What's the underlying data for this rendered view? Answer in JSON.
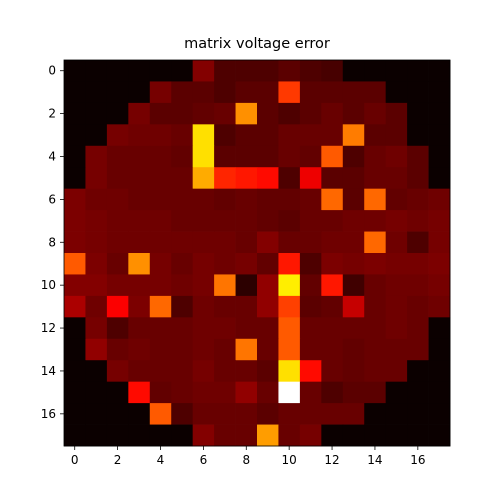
{
  "chart_data": {
    "type": "heatmap",
    "title": "matrix voltage error",
    "xlabel": "",
    "ylabel": "",
    "colormap": "hot",
    "vmin": 0,
    "vmax": 1,
    "x_ticks": [
      0,
      2,
      4,
      6,
      8,
      10,
      12,
      14,
      16
    ],
    "y_ticks": [
      0,
      2,
      4,
      6,
      8,
      10,
      12,
      14,
      16
    ],
    "xlim": [
      -0.5,
      17.5
    ],
    "ylim": [
      17.5,
      -0.5
    ],
    "grid": false,
    "values": [
      [
        0,
        0,
        0,
        0,
        0,
        0,
        0.18,
        0.1,
        0.1,
        0.1,
        0.12,
        0.1,
        0.09,
        0,
        0,
        0,
        0,
        0
      ],
      [
        0,
        0,
        0,
        0,
        0.16,
        0.12,
        0.12,
        0.1,
        0.12,
        0.12,
        0.45,
        0.12,
        0.12,
        0.12,
        0.12,
        0,
        0,
        0
      ],
      [
        0,
        0,
        0,
        0.16,
        0.12,
        0.12,
        0.13,
        0.14,
        0.58,
        0.12,
        0.1,
        0.12,
        0.14,
        0.12,
        0.14,
        0.12,
        0,
        0
      ],
      [
        0,
        0,
        0.16,
        0.15,
        0.15,
        0.14,
        0.7,
        0.1,
        0.12,
        0.12,
        0.14,
        0.14,
        0.14,
        0.55,
        0.12,
        0.12,
        0,
        0
      ],
      [
        0,
        0.16,
        0.14,
        0.14,
        0.14,
        0.13,
        0.7,
        0.12,
        0.12,
        0.12,
        0.14,
        0.13,
        0.5,
        0.1,
        0.14,
        0.15,
        0.12,
        0
      ],
      [
        0,
        0.16,
        0.14,
        0.14,
        0.14,
        0.14,
        0.62,
        0.42,
        0.4,
        0.38,
        0.1,
        0.34,
        0.12,
        0.12,
        0.14,
        0.14,
        0.12,
        0
      ],
      [
        0.17,
        0.15,
        0.15,
        0.14,
        0.14,
        0.14,
        0.14,
        0.13,
        0.14,
        0.13,
        0.13,
        0.14,
        0.52,
        0.12,
        0.52,
        0.13,
        0.14,
        0.15
      ],
      [
        0.17,
        0.16,
        0.15,
        0.15,
        0.15,
        0.14,
        0.14,
        0.14,
        0.14,
        0.13,
        0.12,
        0.14,
        0.14,
        0.15,
        0.15,
        0.16,
        0.15,
        0.16
      ],
      [
        0.17,
        0.16,
        0.15,
        0.15,
        0.15,
        0.15,
        0.15,
        0.15,
        0.14,
        0.18,
        0.14,
        0.14,
        0.15,
        0.15,
        0.52,
        0.15,
        0.1,
        0.16
      ],
      [
        0.5,
        0.17,
        0.14,
        0.58,
        0.16,
        0.14,
        0.16,
        0.15,
        0.16,
        0.13,
        0.4,
        0.1,
        0.17,
        0.16,
        0.17,
        0.16,
        0.16,
        0.17
      ],
      [
        0.18,
        0.18,
        0.16,
        0.16,
        0.16,
        0.15,
        0.16,
        0.54,
        0.05,
        0.2,
        0.72,
        0.13,
        0.4,
        0.08,
        0.14,
        0.15,
        0.15,
        0.16
      ],
      [
        0.24,
        0.15,
        0.36,
        0.17,
        0.52,
        0.1,
        0.15,
        0.14,
        0.14,
        0.2,
        0.46,
        0.12,
        0.13,
        0.28,
        0.14,
        0.15,
        0.14,
        0.15
      ],
      [
        0,
        0.16,
        0.1,
        0.14,
        0.14,
        0.14,
        0.15,
        0.15,
        0.14,
        0.14,
        0.5,
        0.14,
        0.14,
        0.14,
        0.14,
        0.15,
        0.14,
        0
      ],
      [
        0,
        0.2,
        0.14,
        0.15,
        0.14,
        0.14,
        0.15,
        0.14,
        0.54,
        0.14,
        0.5,
        0.14,
        0.14,
        0.13,
        0.14,
        0.14,
        0.14,
        0
      ],
      [
        0,
        0,
        0.16,
        0.14,
        0.14,
        0.14,
        0.16,
        0.14,
        0.14,
        0.12,
        0.7,
        0.38,
        0.14,
        0.13,
        0.14,
        0.14,
        0,
        0
      ],
      [
        0,
        0,
        0,
        0.38,
        0.13,
        0.14,
        0.15,
        0.15,
        0.2,
        0.14,
        1.0,
        0.14,
        0.1,
        0.12,
        0.12,
        0,
        0,
        0
      ],
      [
        0,
        0,
        0,
        0,
        0.5,
        0.1,
        0.14,
        0.14,
        0.14,
        0.12,
        0.14,
        0.14,
        0.14,
        0.14,
        0,
        0,
        0,
        0
      ],
      [
        0,
        0,
        0,
        0,
        0,
        0,
        0.18,
        0.14,
        0.14,
        0.6,
        0.14,
        0.16,
        0,
        0,
        0,
        0,
        0,
        0
      ]
    ]
  }
}
